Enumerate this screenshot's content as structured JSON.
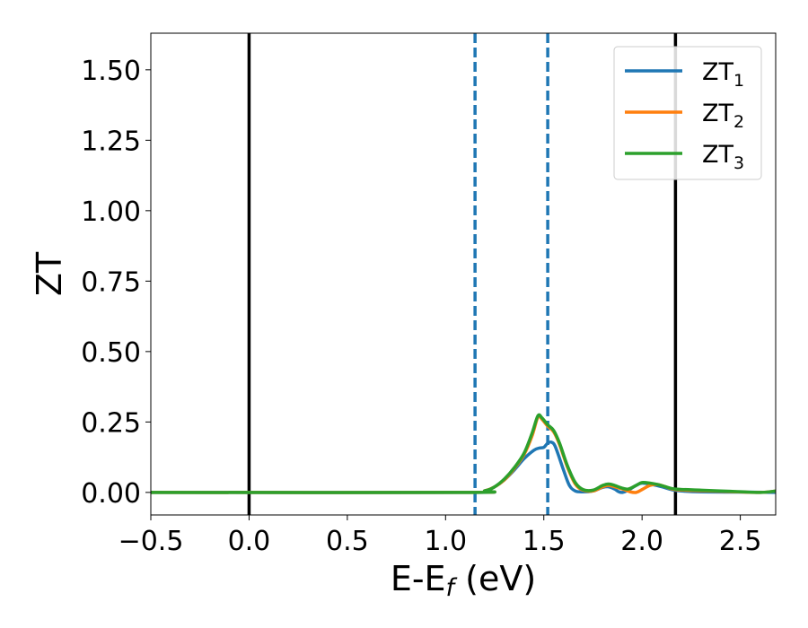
{
  "chart_data": {
    "type": "line",
    "xlabel_main": "E-E",
    "xlabel_sub": "f",
    "xlabel_unit": " (eV)",
    "ylabel": "ZT",
    "xlim": [
      -0.5,
      2.68
    ],
    "ylim": [
      -0.08,
      1.63
    ],
    "xticks": [
      -0.5,
      0.0,
      0.5,
      1.0,
      1.5,
      2.0,
      2.5
    ],
    "xtick_labels": [
      "−0.5",
      "0.0",
      "0.5",
      "1.0",
      "1.5",
      "2.0",
      "2.5"
    ],
    "yticks": [
      0.0,
      0.25,
      0.5,
      0.75,
      1.0,
      1.25,
      1.5
    ],
    "ytick_labels": [
      "0.00",
      "0.25",
      "0.50",
      "0.75",
      "1.00",
      "1.25",
      "1.50"
    ],
    "grid": false,
    "legend_position": "top-right",
    "vlines_solid": [
      0.0,
      2.17
    ],
    "vlines_dashed": [
      1.15,
      1.52
    ],
    "colors": {
      "zt1": "#1f77b4",
      "zt2": "#ff7f0e",
      "zt3": "#2ca02c",
      "vline_solid": "#000000",
      "vline_dashed": "#1f77b4"
    },
    "series": [
      {
        "name": "ZT",
        "sub": "1",
        "color": "#1f77b4",
        "points": [
          [
            -0.5,
            0
          ],
          [
            1.1,
            0
          ],
          [
            1.2,
            0.005
          ],
          [
            1.25,
            0.02
          ],
          [
            1.3,
            0.045
          ],
          [
            1.35,
            0.08
          ],
          [
            1.4,
            0.12
          ],
          [
            1.45,
            0.15
          ],
          [
            1.48,
            0.158
          ],
          [
            1.5,
            0.16
          ],
          [
            1.52,
            0.175
          ],
          [
            1.54,
            0.178
          ],
          [
            1.56,
            0.16
          ],
          [
            1.6,
            0.08
          ],
          [
            1.63,
            0.025
          ],
          [
            1.66,
            0.005
          ],
          [
            1.7,
            0.002
          ],
          [
            1.75,
            0.005
          ],
          [
            1.8,
            0.018
          ],
          [
            1.83,
            0.02
          ],
          [
            1.86,
            0.012
          ],
          [
            1.88,
            0.003
          ],
          [
            1.9,
            0.0
          ],
          [
            1.93,
            0.008
          ],
          [
            1.97,
            0.025
          ],
          [
            2.0,
            0.033
          ],
          [
            2.05,
            0.028
          ],
          [
            2.1,
            0.02
          ],
          [
            2.15,
            0.01
          ],
          [
            2.2,
            0.005
          ],
          [
            2.3,
            0.002
          ],
          [
            2.5,
            0.001
          ],
          [
            2.68,
            0.0
          ]
        ]
      },
      {
        "name": "ZT",
        "sub": "2",
        "color": "#ff7f0e",
        "points": [
          [
            -0.5,
            0
          ],
          [
            1.1,
            0
          ],
          [
            1.2,
            0.006
          ],
          [
            1.25,
            0.02
          ],
          [
            1.3,
            0.045
          ],
          [
            1.35,
            0.085
          ],
          [
            1.4,
            0.135
          ],
          [
            1.44,
            0.2
          ],
          [
            1.47,
            0.268
          ],
          [
            1.49,
            0.26
          ],
          [
            1.52,
            0.235
          ],
          [
            1.55,
            0.215
          ],
          [
            1.58,
            0.17
          ],
          [
            1.62,
            0.09
          ],
          [
            1.66,
            0.03
          ],
          [
            1.7,
            0.008
          ],
          [
            1.75,
            0.005
          ],
          [
            1.8,
            0.02
          ],
          [
            1.83,
            0.025
          ],
          [
            1.86,
            0.02
          ],
          [
            1.9,
            0.012
          ],
          [
            1.94,
            0.002
          ],
          [
            1.97,
            0.0
          ],
          [
            2.0,
            0.01
          ],
          [
            2.04,
            0.025
          ],
          [
            2.08,
            0.028
          ],
          [
            2.12,
            0.02
          ],
          [
            2.17,
            0.01
          ],
          [
            2.3,
            0.006
          ],
          [
            2.45,
            0.003
          ],
          [
            2.6,
            0.0
          ],
          [
            2.68,
            0.005
          ]
        ]
      },
      {
        "name": "ZT",
        "sub": "3",
        "color": "#2ca02c",
        "points": [
          [
            -0.5,
            0
          ],
          [
            1.1,
            0
          ],
          [
            1.2,
            0.006
          ],
          [
            1.25,
            0.02
          ],
          [
            1.3,
            0.048
          ],
          [
            1.35,
            0.088
          ],
          [
            1.4,
            0.14
          ],
          [
            1.44,
            0.21
          ],
          [
            1.47,
            0.272
          ],
          [
            1.49,
            0.265
          ],
          [
            1.52,
            0.24
          ],
          [
            1.55,
            0.22
          ],
          [
            1.58,
            0.175
          ],
          [
            1.62,
            0.095
          ],
          [
            1.66,
            0.035
          ],
          [
            1.7,
            0.01
          ],
          [
            1.75,
            0.008
          ],
          [
            1.8,
            0.025
          ],
          [
            1.83,
            0.03
          ],
          [
            1.86,
            0.025
          ],
          [
            1.9,
            0.015
          ],
          [
            1.93,
            0.012
          ],
          [
            1.97,
            0.025
          ],
          [
            2.0,
            0.035
          ],
          [
            2.04,
            0.033
          ],
          [
            2.08,
            0.028
          ],
          [
            2.12,
            0.02
          ],
          [
            2.17,
            0.012
          ],
          [
            2.3,
            0.008
          ],
          [
            2.45,
            0.004
          ],
          [
            2.6,
            0.0
          ],
          [
            2.68,
            0.005
          ]
        ]
      }
    ]
  }
}
